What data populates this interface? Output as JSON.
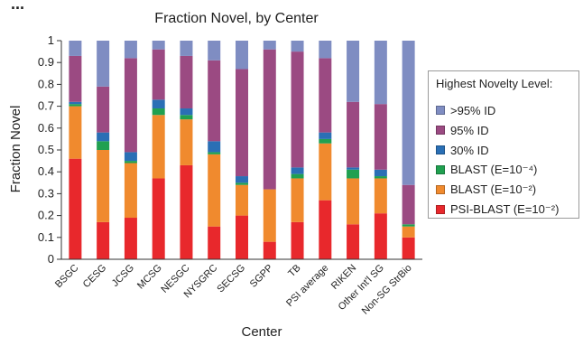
{
  "chart_data": {
    "type": "bar",
    "stacked": true,
    "partial_header": "...",
    "title": "Fraction Novel, by Center",
    "xlabel": "Center",
    "ylabel": "Fraction Novel",
    "ylim": [
      0,
      1
    ],
    "yticks": [
      "0",
      "0.1",
      "0.2",
      "0.3",
      "0.4",
      "0.5",
      "0.6",
      "0.7",
      "0.8",
      "0.9",
      "1"
    ],
    "categories": [
      "BSGC",
      "CESG",
      "JCSG",
      "MCSG",
      "NESGC",
      "NYSGRC",
      "SECSG",
      "SGPP",
      "TB",
      "PSI average",
      "RIKEN",
      "Other Int'l SG",
      "Non-SG StrBio"
    ],
    "legend": {
      "title": "Highest Novelty Level:",
      "placement": "right"
    },
    "series": [
      {
        "name": "PSI-BLAST (E=10⁻²)",
        "color": "#e8282c",
        "values": [
          0.46,
          0.17,
          0.19,
          0.37,
          0.43,
          0.15,
          0.2,
          0.08,
          0.17,
          0.27,
          0.16,
          0.21,
          0.1
        ]
      },
      {
        "name": "BLAST (E=10⁻²)",
        "color": "#f08a2e",
        "values": [
          0.24,
          0.33,
          0.25,
          0.29,
          0.21,
          0.33,
          0.14,
          0.24,
          0.2,
          0.26,
          0.21,
          0.16,
          0.05
        ]
      },
      {
        "name": "BLAST (E=10⁻⁴)",
        "color": "#20a050",
        "values": [
          0.01,
          0.04,
          0.01,
          0.03,
          0.02,
          0.01,
          0.01,
          0.0,
          0.02,
          0.02,
          0.04,
          0.01,
          0.01
        ]
      },
      {
        "name": "30% ID",
        "color": "#2a6fb5",
        "values": [
          0.01,
          0.04,
          0.04,
          0.04,
          0.03,
          0.05,
          0.03,
          0.0,
          0.03,
          0.03,
          0.01,
          0.03,
          0.0
        ]
      },
      {
        "name": "95% ID",
        "color": "#9b4a82",
        "values": [
          0.21,
          0.21,
          0.43,
          0.23,
          0.24,
          0.37,
          0.49,
          0.64,
          0.53,
          0.34,
          0.3,
          0.3,
          0.18
        ]
      },
      {
        "name": ">95% ID",
        "color": "#7f8dc2",
        "values": [
          0.07,
          0.21,
          0.08,
          0.04,
          0.07,
          0.09,
          0.13,
          0.04,
          0.05,
          0.08,
          0.28,
          0.29,
          0.66
        ]
      }
    ]
  }
}
